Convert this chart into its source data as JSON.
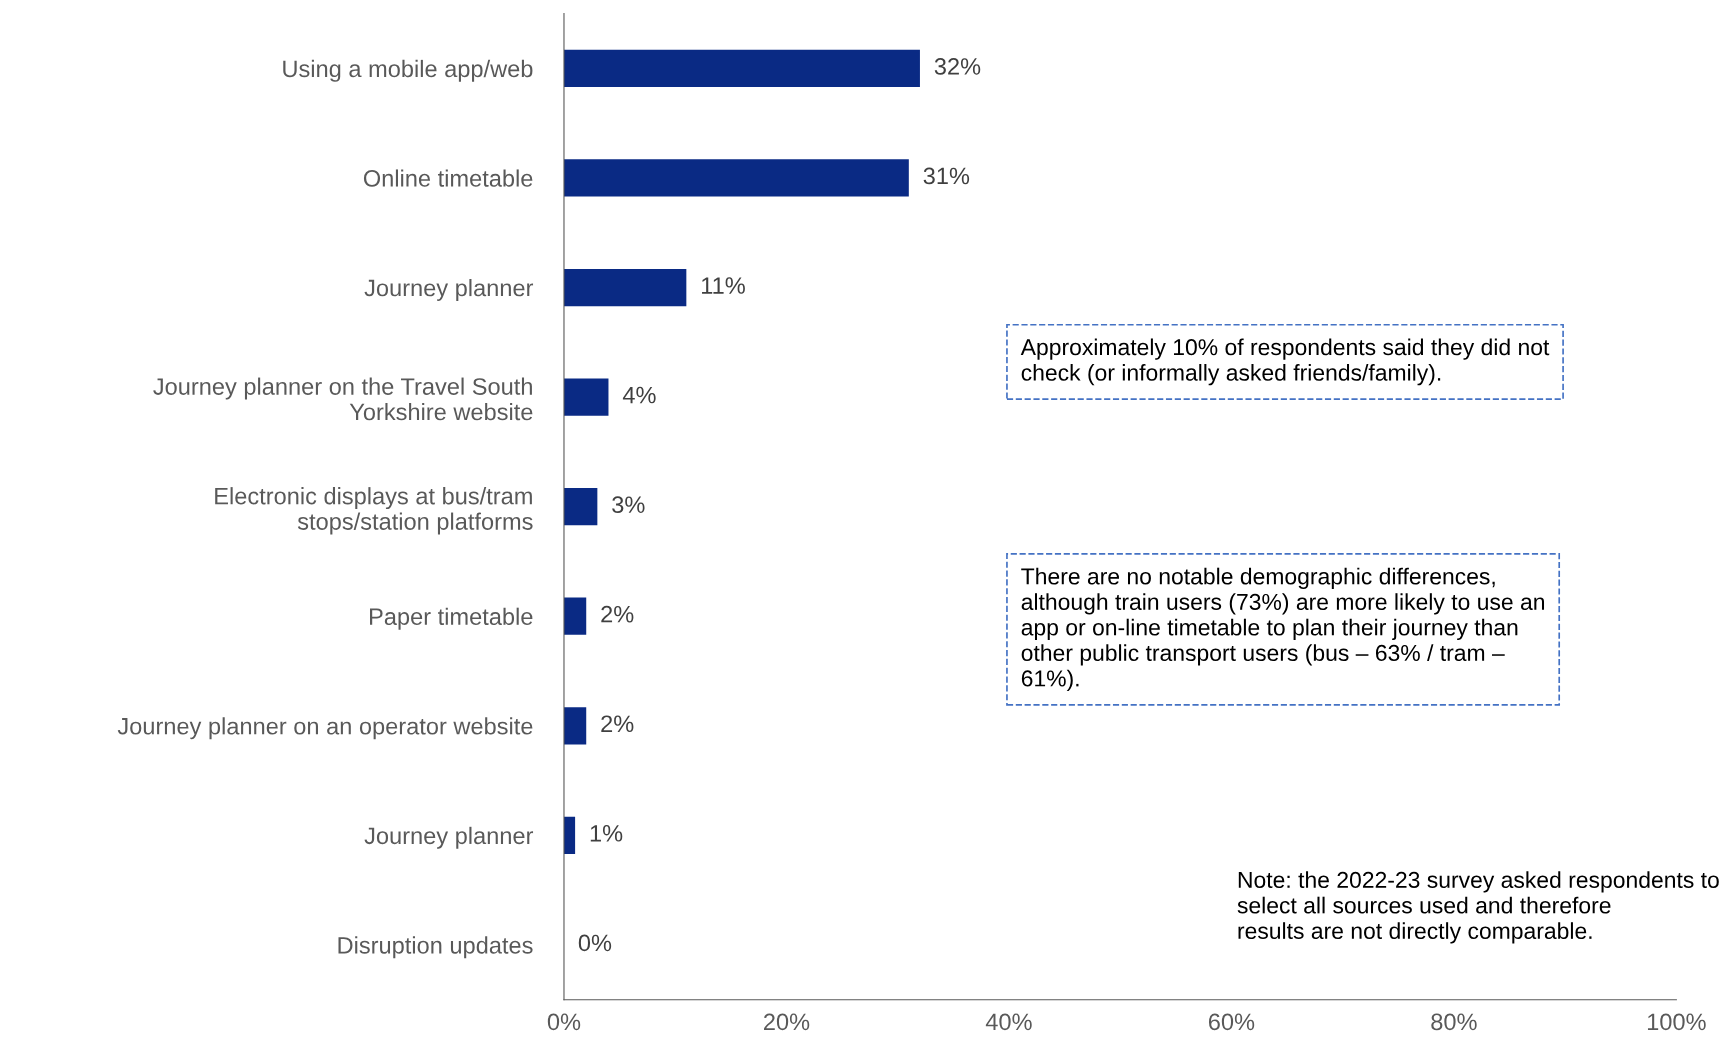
{
  "chart_data": {
    "type": "bar",
    "orientation": "horizontal",
    "categories": [
      "Using a mobile app/web",
      "Online timetable",
      "Journey planner",
      "Journey planner on the Travel South\nYorkshire website",
      "Electronic displays at bus/tram\nstops/station platforms",
      "Paper timetable",
      "Journey planner on an operator website",
      "Journey planner",
      "Disruption updates"
    ],
    "values": [
      32,
      31,
      11,
      4,
      3,
      2,
      2,
      1,
      0
    ],
    "value_labels": [
      "32%",
      "31%",
      "11%",
      "4%",
      "3%",
      "2%",
      "2%",
      "1%",
      "0%"
    ],
    "color": "#0a2a84",
    "xlim": [
      0,
      100
    ],
    "xticks": [
      {
        "value": 0,
        "label": "0%"
      },
      {
        "value": 20,
        "label": "20%"
      },
      {
        "value": 40,
        "label": "40%"
      },
      {
        "value": 60,
        "label": "60%"
      },
      {
        "value": 80,
        "label": "80%"
      },
      {
        "value": 100,
        "label": "100%"
      }
    ],
    "grid": false,
    "legend": false,
    "annotations": [
      "Approximately 10% of respondents said they did not\ncheck (or informally asked friends/family).",
      "There are no notable demographic differences,\nalthough train users (73%) are more likely to use an\napp or on-line timetable to plan their journey than\nother public transport users (bus – 63% / tram –\n61%).",
      "Note: the 2022-23 survey asked respondents to\nselect all sources used and therefore\nresults are not directly comparable."
    ]
  }
}
